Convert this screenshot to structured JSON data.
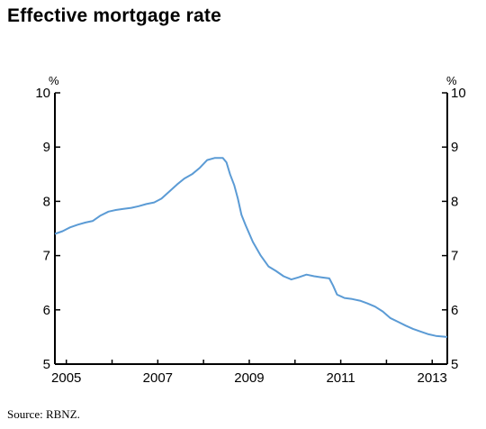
{
  "title": "Effective mortgage rate",
  "source": "Source: RBNZ.",
  "chart_data": {
    "type": "line",
    "unit_left": "%",
    "unit_right": "%",
    "ylim": [
      5,
      10
    ],
    "yticks": [
      5,
      6,
      7,
      8,
      9,
      10
    ],
    "xlim": [
      2004.75,
      2013.33
    ],
    "xticks": [
      2005,
      2007,
      2009,
      2011,
      2013
    ],
    "grid": false,
    "line_color": "#5b9bd5",
    "series": [
      {
        "x": [
          2004.75,
          2004.92,
          2005.08,
          2005.25,
          2005.42,
          2005.58,
          2005.75,
          2005.92,
          2006.08,
          2006.25,
          2006.42,
          2006.58,
          2006.75,
          2006.92,
          2007.08,
          2007.25,
          2007.42,
          2007.58,
          2007.75,
          2007.92,
          2008.08,
          2008.25,
          2008.42,
          2008.5,
          2008.58,
          2008.67,
          2008.75,
          2008.83,
          2008.92,
          2009.08,
          2009.25,
          2009.42,
          2009.58,
          2009.75,
          2009.92,
          2010.08,
          2010.25,
          2010.42,
          2010.58,
          2010.75,
          2010.83,
          2010.92,
          2011.08,
          2011.25,
          2011.42,
          2011.58,
          2011.75,
          2011.92,
          2012.08,
          2012.25,
          2012.42,
          2012.58,
          2012.75,
          2012.92,
          2013.08,
          2013.33
        ],
        "y": [
          7.4,
          7.45,
          7.52,
          7.57,
          7.61,
          7.64,
          7.74,
          7.81,
          7.84,
          7.86,
          7.88,
          7.91,
          7.95,
          7.98,
          8.05,
          8.18,
          8.31,
          8.42,
          8.5,
          8.62,
          8.76,
          8.8,
          8.8,
          8.72,
          8.5,
          8.3,
          8.05,
          7.75,
          7.56,
          7.25,
          7.0,
          6.8,
          6.72,
          6.62,
          6.56,
          6.6,
          6.65,
          6.62,
          6.6,
          6.58,
          6.45,
          6.28,
          6.22,
          6.2,
          6.17,
          6.12,
          6.06,
          5.97,
          5.85,
          5.78,
          5.71,
          5.65,
          5.6,
          5.55,
          5.52,
          5.5
        ]
      }
    ]
  }
}
